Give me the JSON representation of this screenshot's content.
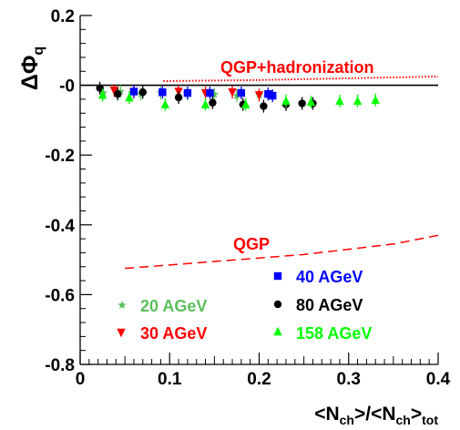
{
  "chart_data": {
    "type": "scatter",
    "ylabel": "ΔΦ",
    "ylabel_sub": "q",
    "xlabel_parts": [
      "<N",
      "ch",
      ">/<N",
      "ch",
      ">",
      "tot"
    ],
    "xlim": [
      0,
      0.4
    ],
    "ylim": [
      -0.8,
      0.2
    ],
    "x_ticks": [
      {
        "v": 0,
        "label": "0"
      },
      {
        "v": 0.1,
        "label": "0.1"
      },
      {
        "v": 0.2,
        "label": "0.2"
      },
      {
        "v": 0.3,
        "label": "0.3"
      },
      {
        "v": 0.4,
        "label": "0.4"
      }
    ],
    "y_ticks": [
      {
        "v": 0.2,
        "label": "0.2"
      },
      {
        "v": 0,
        "label": "-0"
      },
      {
        "v": -0.2,
        "label": "-0.2"
      },
      {
        "v": -0.4,
        "label": "-0.4"
      },
      {
        "v": -0.6,
        "label": "-0.6"
      },
      {
        "v": -0.8,
        "label": "-0.8"
      }
    ],
    "reference_line": 0,
    "series": [
      {
        "name": "20 AGeV",
        "marker": "star",
        "color": "#5bbf5b",
        "points": [
          [
            0.026,
            -0.022
          ],
          [
            0.045,
            -0.018
          ],
          [
            0.068,
            -0.025
          ],
          [
            0.09,
            -0.022
          ],
          [
            0.12,
            -0.025
          ],
          [
            0.15,
            -0.026
          ],
          [
            0.175,
            -0.03
          ],
          [
            0.2,
            -0.028
          ],
          [
            0.21,
            -0.025
          ]
        ]
      },
      {
        "name": "30 AGeV",
        "marker": "triangle-down",
        "color": "#ff0000",
        "points": [
          [
            0.038,
            -0.015
          ],
          [
            0.06,
            -0.02
          ],
          [
            0.11,
            -0.018
          ],
          [
            0.14,
            -0.022
          ],
          [
            0.17,
            -0.02
          ],
          [
            0.2,
            -0.028
          ]
        ]
      },
      {
        "name": "40 AGeV",
        "marker": "square",
        "color": "#0000ff",
        "points": [
          [
            0.06,
            -0.018
          ],
          [
            0.092,
            -0.02
          ],
          [
            0.12,
            -0.022
          ],
          [
            0.145,
            -0.022
          ],
          [
            0.18,
            -0.022
          ],
          [
            0.21,
            -0.025
          ],
          [
            0.215,
            -0.03
          ]
        ]
      },
      {
        "name": "80 AGeV",
        "marker": "circle",
        "color": "#000000",
        "points": [
          [
            0.022,
            -0.008
          ],
          [
            0.042,
            -0.025
          ],
          [
            0.07,
            -0.02
          ],
          [
            0.11,
            -0.035
          ],
          [
            0.148,
            -0.05
          ],
          [
            0.182,
            -0.055
          ],
          [
            0.205,
            -0.06
          ],
          [
            0.23,
            -0.055
          ],
          [
            0.248,
            -0.052
          ],
          [
            0.26,
            -0.052
          ]
        ]
      },
      {
        "name": "158 AGeV",
        "marker": "triangle-up",
        "color": "#00ff00",
        "points": [
          [
            0.025,
            -0.028
          ],
          [
            0.055,
            -0.035
          ],
          [
            0.095,
            -0.055
          ],
          [
            0.14,
            -0.055
          ],
          [
            0.185,
            -0.055
          ],
          [
            0.23,
            -0.045
          ],
          [
            0.258,
            -0.048
          ],
          [
            0.29,
            -0.045
          ],
          [
            0.31,
            -0.045
          ],
          [
            0.33,
            -0.042
          ]
        ]
      }
    ],
    "curves": [
      {
        "name": "QGP+hadronization",
        "style": "dotted",
        "color": "#ff0000",
        "points": [
          [
            0.093,
            0.012
          ],
          [
            0.2,
            0.015
          ],
          [
            0.3,
            0.02
          ],
          [
            0.4,
            0.025
          ]
        ]
      },
      {
        "name": "QGP",
        "style": "dashed",
        "color": "#ff0000",
        "points": [
          [
            0.05,
            -0.525
          ],
          [
            0.15,
            -0.505
          ],
          [
            0.25,
            -0.485
          ],
          [
            0.35,
            -0.455
          ],
          [
            0.4,
            -0.43
          ]
        ]
      }
    ],
    "curve_labels": [
      {
        "text": "QGP+hadronization",
        "color": "#ff0000"
      },
      {
        "text": "QGP",
        "color": "#ff0000"
      }
    ],
    "legend": [
      {
        "label": "20 AGeV",
        "marker": "star",
        "color": "#5bbf5b"
      },
      {
        "label": "30 AGeV",
        "marker": "triangle-down",
        "color": "#ff0000"
      },
      {
        "label": "40 AGeV",
        "marker": "square",
        "color": "#0000ff"
      },
      {
        "label": "80 AGeV",
        "marker": "circle",
        "color": "#000000"
      },
      {
        "label": "158 AGeV",
        "marker": "triangle-up",
        "color": "#00ff00"
      }
    ]
  }
}
